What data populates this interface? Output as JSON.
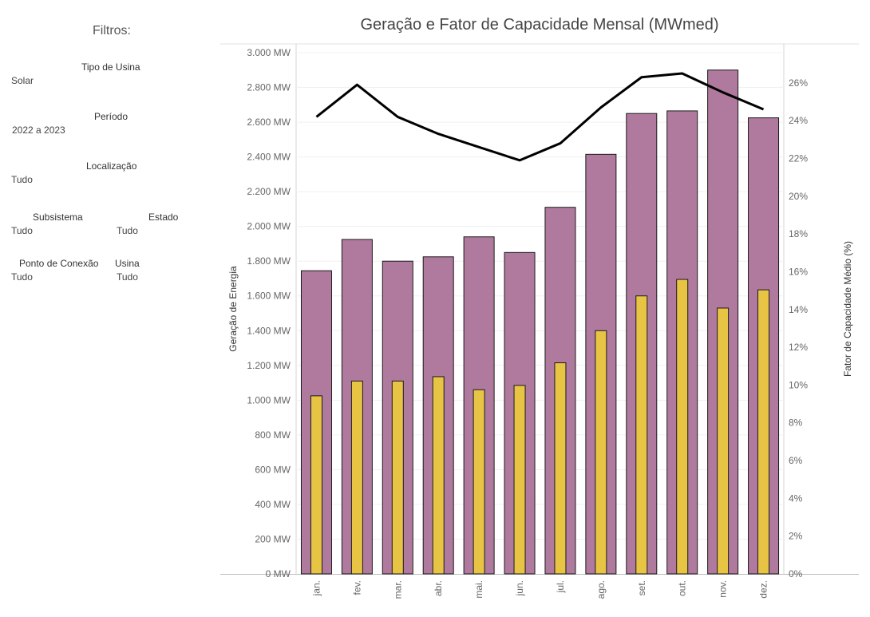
{
  "filters": {
    "title": "Filtros:",
    "tipo_usina": {
      "label": "Tipo de Usina",
      "value": "Solar"
    },
    "periodo": {
      "label": "Período",
      "value": "2022 a 2023"
    },
    "localizacao": {
      "label": "Localização",
      "value": "Tudo"
    },
    "subsistema": {
      "label": "Subsistema",
      "value": "Tudo"
    },
    "estado": {
      "label": "Estado",
      "value": "Tudo"
    },
    "ponto_conexao": {
      "label": "Ponto de Conexão",
      "value": "Tudo"
    },
    "usina": {
      "label": "Usina",
      "value": "Tudo"
    }
  },
  "chart_data": {
    "type": "bar",
    "title": "Geração e Fator de Capacidade Mensal (MWmed)",
    "ylabel": "Geração de Energia",
    "y2label": "Fator de Capacidade Médio (%)",
    "categories": [
      "jan.",
      "fev.",
      "mar.",
      "abr.",
      "mai.",
      "jun.",
      "jul.",
      "ago.",
      "set.",
      "out.",
      "nov.",
      "dez."
    ],
    "ylim": [
      0,
      3000
    ],
    "y2lim": [
      0,
      27.6
    ],
    "yticks": [
      "0 MW",
      "200 MW",
      "400 MW",
      "600 MW",
      "800 MW",
      "1.000 MW",
      "1.200 MW",
      "1.400 MW",
      "1.600 MW",
      "1.800 MW",
      "2.000 MW",
      "2.200 MW",
      "2.400 MW",
      "2.600 MW",
      "2.800 MW",
      "3.000 MW"
    ],
    "y2ticks": [
      "0%",
      "2%",
      "4%",
      "6%",
      "8%",
      "10%",
      "12%",
      "14%",
      "16%",
      "18%",
      "20%",
      "22%",
      "24%",
      "26%"
    ],
    "grid": true,
    "series": [
      {
        "kind": "bar",
        "color": "#b07a9f",
        "values": [
          1745,
          1925,
          1800,
          1825,
          1940,
          1850,
          2110,
          2415,
          2650,
          2665,
          2900,
          2625
        ]
      },
      {
        "kind": "bar-narrow",
        "color": "#e8c445",
        "values": [
          1025,
          1110,
          1110,
          1135,
          1060,
          1085,
          1215,
          1400,
          1600,
          1695,
          1530,
          1635
        ]
      },
      {
        "kind": "line",
        "axis": "right",
        "color": "#000000",
        "values": [
          24.2,
          25.9,
          24.2,
          23.3,
          22.6,
          21.9,
          22.8,
          24.7,
          26.3,
          26.5,
          25.5,
          24.6
        ]
      }
    ]
  }
}
